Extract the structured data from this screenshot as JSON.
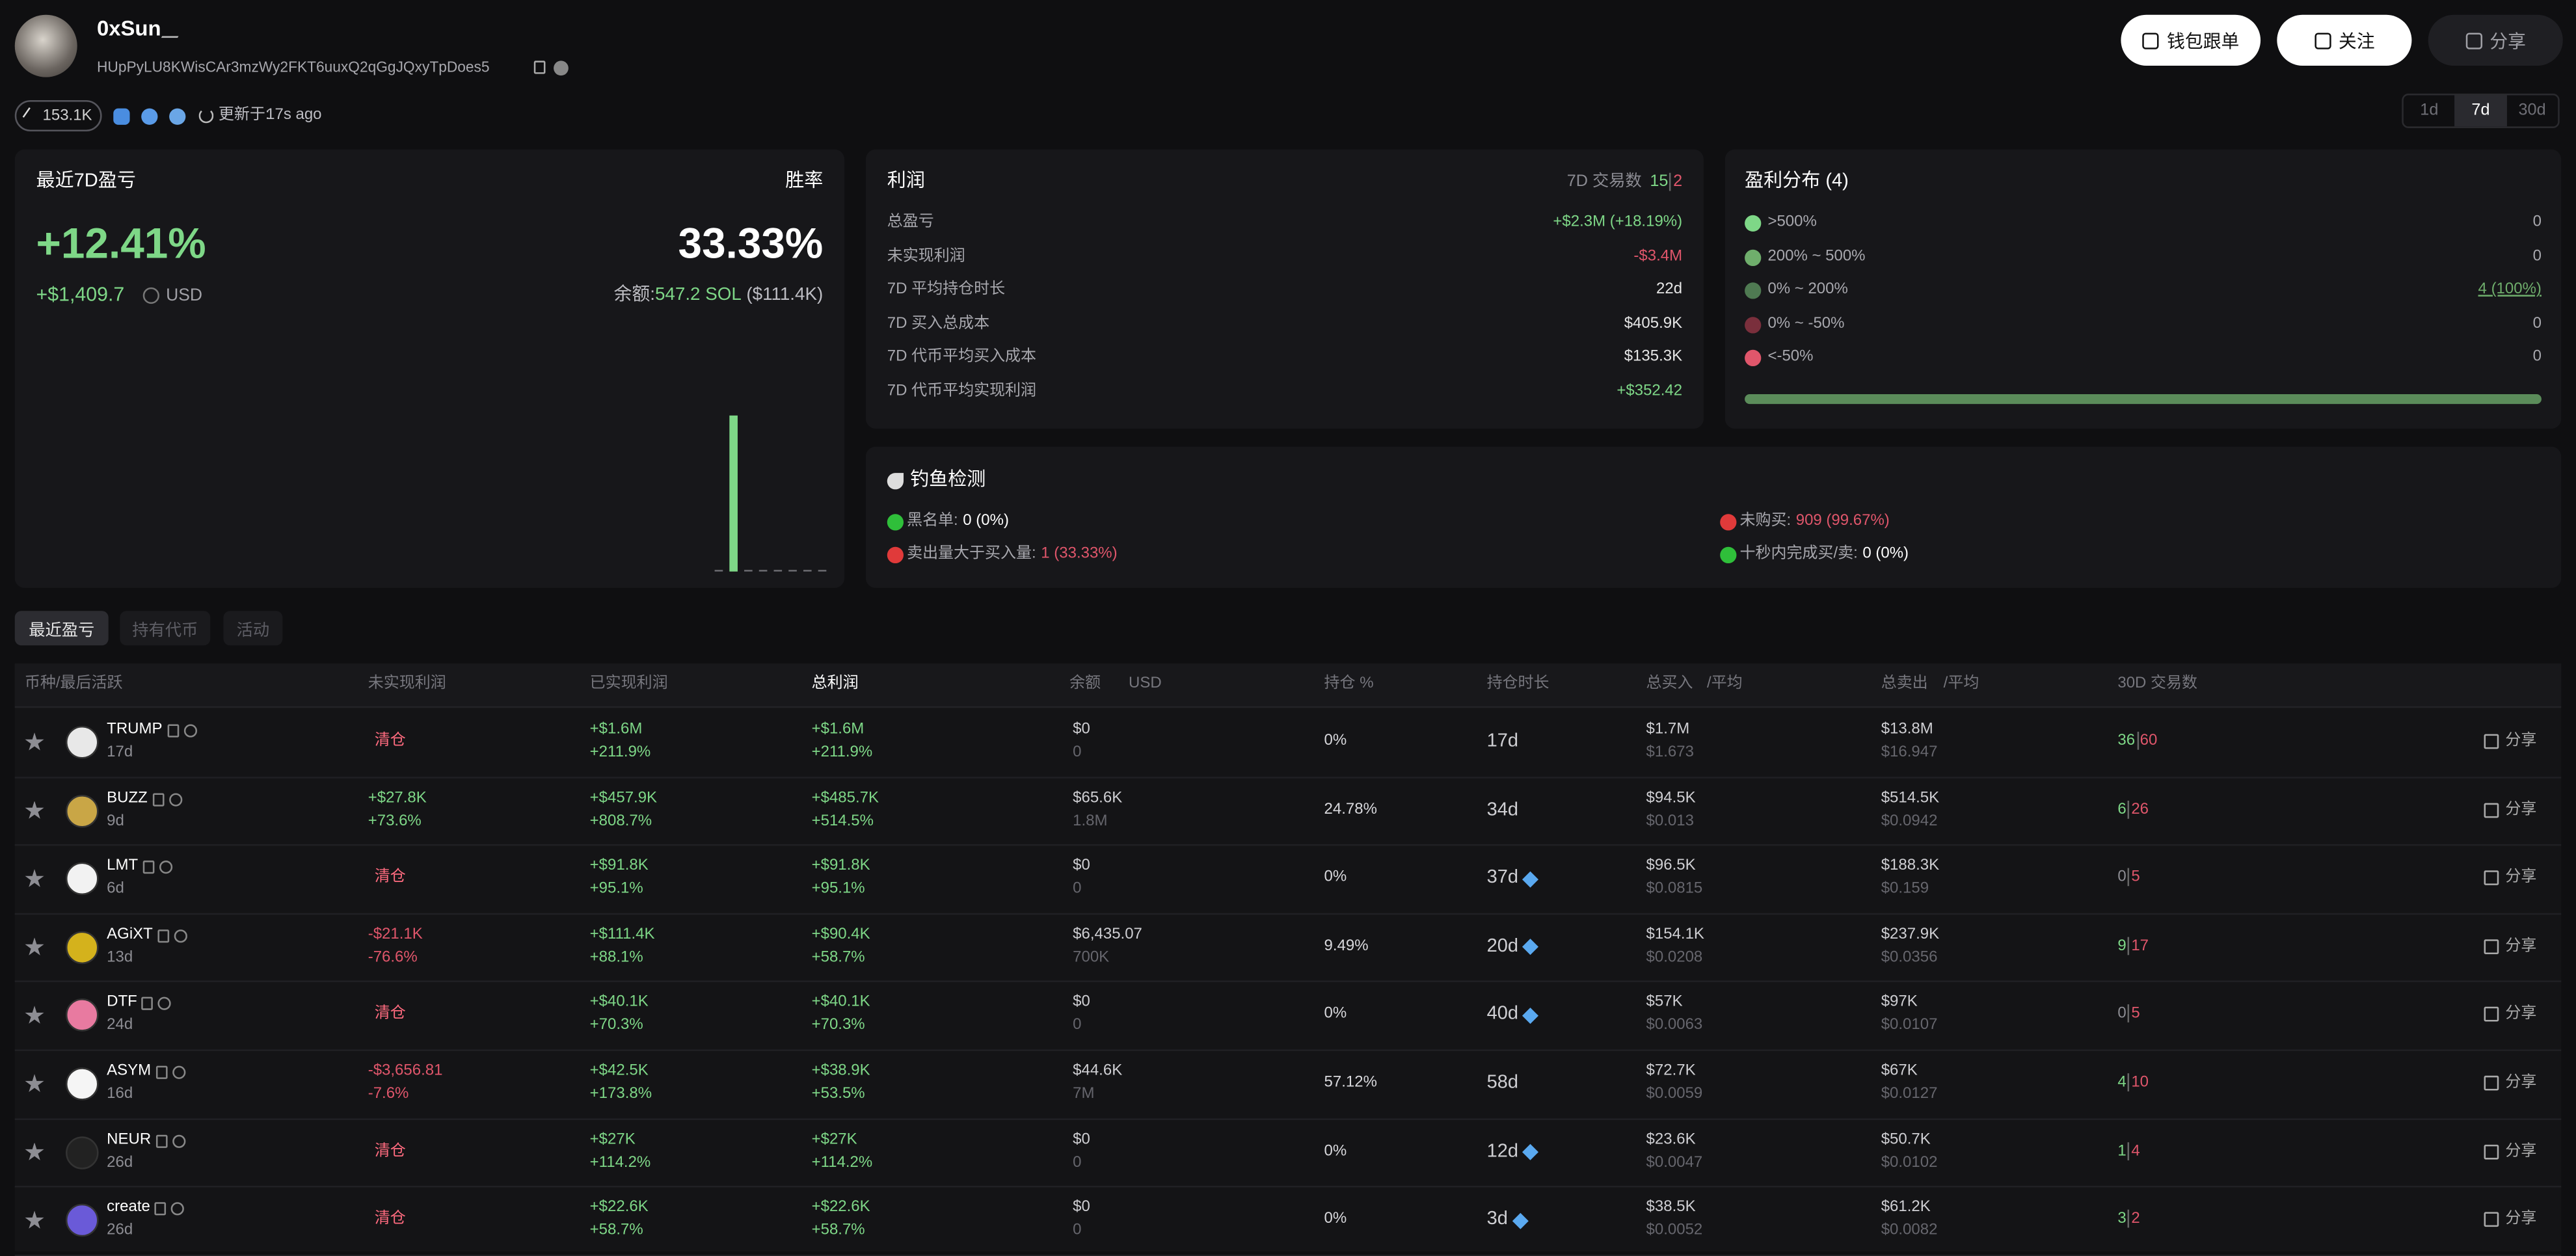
{
  "header": {
    "name": "0xSun",
    "address": "HUpPyLU8KWisCAr3mzWy2FKT6uuxQ2qGgJQxyTpDoes5",
    "followers": "153.1K",
    "updated_label": "更新于:",
    "updated": "17s ago",
    "buttons": [
      "钱包跟单",
      "关注",
      "分享"
    ],
    "periods": [
      "1d",
      "7d",
      "30d"
    ],
    "active_period": 1
  },
  "pnl_card": {
    "title": "最近7D盈亏",
    "pct": "+12.41%",
    "usd": "+$1,409.7",
    "unit": "USD",
    "winrate_label": "胜率",
    "winrate": "33.33%",
    "balance_label": "余额:",
    "balance_sol": "547.2 SOL",
    "balance_usd": "($111.4K)",
    "chart": {
      "type": "bar",
      "color": "#7ed787",
      "values": [
        0,
        1409.7,
        0,
        0,
        0,
        0,
        0,
        0
      ]
    }
  },
  "profit_card": {
    "title": "利润",
    "trades_label": "7D 交易数",
    "trades_win": "15",
    "trades_loss": "2",
    "rows": [
      {
        "label": "总盈亏",
        "value": "+$2.3M (+18.19%)",
        "tone": "green"
      },
      {
        "label": "未实现利润",
        "value": "-$3.4M",
        "tone": "red"
      },
      {
        "label": "7D 平均持仓时长",
        "value": "22d",
        "tone": "white"
      },
      {
        "label": "7D 买入总成本",
        "value": "$405.9K",
        "tone": "white"
      },
      {
        "label": "7D 代币平均买入成本",
        "value": "$135.3K",
        "tone": "white"
      },
      {
        "label": "7D 代币平均实现利润",
        "value": "+$352.42",
        "tone": "green"
      }
    ]
  },
  "distribution_card": {
    "title": "盈利分布 (4)",
    "rows": [
      {
        "label": ">500%",
        "value": "0",
        "color": "#7ed787"
      },
      {
        "label": "200% ~ 500%",
        "value": "0",
        "color": "#6fae6c"
      },
      {
        "label": "0% ~ 200%",
        "value": "4 (100%)",
        "color": "#4f7a52"
      },
      {
        "label": "0% ~ -50%",
        "value": "0",
        "color": "#7a2f3c"
      },
      {
        "label": "<-50%",
        "value": "0",
        "color": "#e0566b"
      }
    ]
  },
  "phishing_card": {
    "title": "钓鱼检测",
    "items": [
      {
        "label": "黑名单:",
        "value": "0 (0%)",
        "status": "green"
      },
      {
        "label": "未购买:",
        "value": "909 (99.67%)",
        "status": "red"
      },
      {
        "label": "卖出量大于买入量:",
        "value": "1 (33.33%)",
        "status": "red"
      },
      {
        "label": "十秒内完成买/卖:",
        "value": "0 (0%)",
        "status": "green"
      }
    ]
  },
  "tabs": [
    "最近盈亏",
    "持有代币",
    "活动"
  ],
  "table": {
    "columns": [
      "币种/最后活跃",
      "未实现利润",
      "已实现利润",
      "总利润",
      "余额",
      "USD",
      "持仓 %",
      "持仓时长",
      "总买入",
      "/平均",
      "总卖出",
      "/平均",
      "30D 交易数"
    ],
    "share_label": "分享",
    "closed_label": "清仓",
    "rows": [
      {
        "token": "TRUMP",
        "age": "17d",
        "unrealized": null,
        "realized": [
          "+$1.6M",
          "+211.9%"
        ],
        "total": [
          "+$1.6M",
          "+211.9%"
        ],
        "balance": [
          "$0",
          "0"
        ],
        "hold": "0%",
        "duration": "17d",
        "diamond": false,
        "buy": [
          "$1.7M",
          "$1.673"
        ],
        "sell": [
          "$13.8M",
          "$16.947"
        ],
        "tx_win": "36",
        "tx_loss": "60",
        "icon": "#e8e8e8"
      },
      {
        "token": "BUZZ",
        "age": "9d",
        "unrealized": [
          "+$27.8K",
          "+73.6%"
        ],
        "realized": [
          "+$457.9K",
          "+808.7%"
        ],
        "total": [
          "+$485.7K",
          "+514.5%"
        ],
        "balance": [
          "$65.6K",
          "1.8M"
        ],
        "hold": "24.78%",
        "duration": "34d",
        "diamond": false,
        "buy": [
          "$94.5K",
          "$0.013"
        ],
        "sell": [
          "$514.5K",
          "$0.0942"
        ],
        "tx_win": "6",
        "tx_loss": "26",
        "icon": "#c9a646"
      },
      {
        "token": "LMT",
        "age": "6d",
        "unrealized": null,
        "realized": [
          "+$91.8K",
          "+95.1%"
        ],
        "total": [
          "+$91.8K",
          "+95.1%"
        ],
        "balance": [
          "$0",
          "0"
        ],
        "hold": "0%",
        "duration": "37d",
        "diamond": true,
        "buy": [
          "$96.5K",
          "$0.0815"
        ],
        "sell": [
          "$188.3K",
          "$0.159"
        ],
        "tx_win": "0",
        "tx_loss": "5",
        "icon": "#f2f2f2"
      },
      {
        "token": "AGiXT",
        "age": "13d",
        "unrealized": [
          "-$21.1K",
          "-76.6%"
        ],
        "realized": [
          "+$111.4K",
          "+88.1%"
        ],
        "total": [
          "+$90.4K",
          "+58.7%"
        ],
        "balance": [
          "$6,435.07",
          "700K"
        ],
        "hold": "9.49%",
        "duration": "20d",
        "diamond": true,
        "buy": [
          "$154.1K",
          "$0.0208"
        ],
        "sell": [
          "$237.9K",
          "$0.0356"
        ],
        "tx_win": "9",
        "tx_loss": "17",
        "icon": "#d4b21c"
      },
      {
        "token": "DTF",
        "age": "24d",
        "unrealized": null,
        "realized": [
          "+$40.1K",
          "+70.3%"
        ],
        "total": [
          "+$40.1K",
          "+70.3%"
        ],
        "balance": [
          "$0",
          "0"
        ],
        "hold": "0%",
        "duration": "40d",
        "diamond": true,
        "buy": [
          "$57K",
          "$0.0063"
        ],
        "sell": [
          "$97K",
          "$0.0107"
        ],
        "tx_win": "0",
        "tx_loss": "5",
        "icon": "#e87aa0"
      },
      {
        "token": "ASYM",
        "age": "16d",
        "unrealized": [
          "-$3,656.81",
          "-7.6%"
        ],
        "realized": [
          "+$42.5K",
          "+173.8%"
        ],
        "total": [
          "+$38.9K",
          "+53.5%"
        ],
        "balance": [
          "$44.6K",
          "7M"
        ],
        "hold": "57.12%",
        "duration": "58d",
        "diamond": false,
        "buy": [
          "$72.7K",
          "$0.0059"
        ],
        "sell": [
          "$67K",
          "$0.0127"
        ],
        "tx_win": "4",
        "tx_loss": "10",
        "icon": "#f5f5f5"
      },
      {
        "token": "NEUR",
        "age": "26d",
        "unrealized": null,
        "realized": [
          "+$27K",
          "+114.2%"
        ],
        "total": [
          "+$27K",
          "+114.2%"
        ],
        "balance": [
          "$0",
          "0"
        ],
        "hold": "0%",
        "duration": "12d",
        "diamond": true,
        "buy": [
          "$23.6K",
          "$0.0047"
        ],
        "sell": [
          "$50.7K",
          "$0.0102"
        ],
        "tx_win": "1",
        "tx_loss": "4",
        "icon": "#222"
      },
      {
        "token": "create",
        "age": "26d",
        "unrealized": null,
        "realized": [
          "+$22.6K",
          "+58.7%"
        ],
        "total": [
          "+$22.6K",
          "+58.7%"
        ],
        "balance": [
          "$0",
          "0"
        ],
        "hold": "0%",
        "duration": "3d",
        "diamond": true,
        "buy": [
          "$38.5K",
          "$0.0052"
        ],
        "sell": [
          "$61.2K",
          "$0.0082"
        ],
        "tx_win": "3",
        "tx_loss": "2",
        "icon": "#6a5ad8"
      }
    ]
  }
}
